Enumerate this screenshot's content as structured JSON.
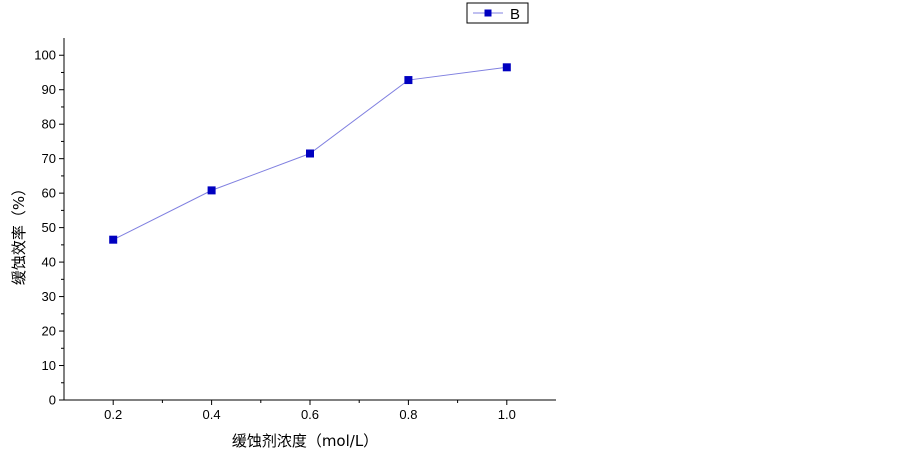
{
  "chart_data": {
    "type": "line",
    "x": [
      0.2,
      0.4,
      0.6,
      0.8,
      1.0
    ],
    "series": [
      {
        "name": "B",
        "values": [
          46.5,
          60.8,
          71.5,
          92.8,
          96.5
        ]
      }
    ],
    "x_ticks": [
      "0.2",
      "0.4",
      "0.6",
      "0.8",
      "1.0"
    ],
    "y_ticks": [
      "0",
      "10",
      "20",
      "30",
      "40",
      "50",
      "60",
      "70",
      "80",
      "90",
      "100"
    ],
    "xlabel": "缓蚀剂浓度（mol/L）",
    "ylabel": "缓蚀效率（%）",
    "xlim": [
      0.1,
      1.1
    ],
    "ylim": [
      0,
      105
    ],
    "grid": false,
    "legend_position": "top-right",
    "colors": {
      "line": "#8080e0",
      "marker": "#0000c0",
      "axis": "#000000"
    },
    "marker": "square"
  }
}
